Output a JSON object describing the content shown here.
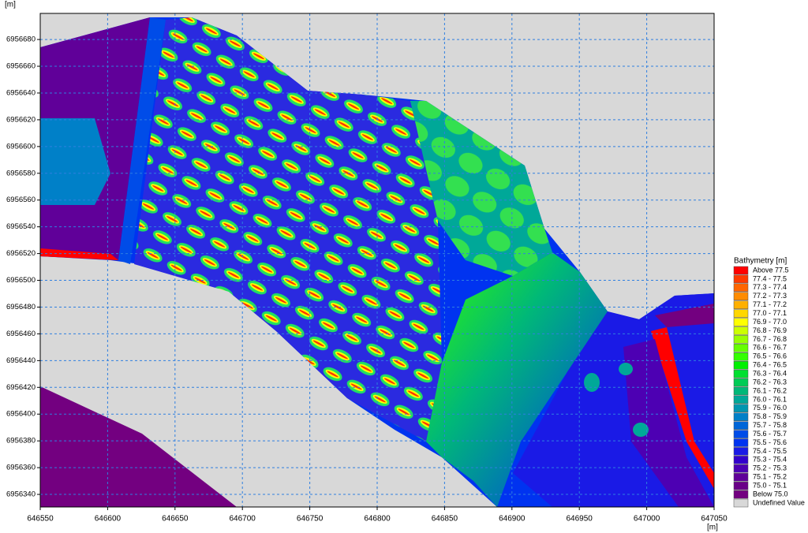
{
  "chart_data": {
    "type": "map",
    "xlabel": "[m]",
    "ylabel": "[m]",
    "xlim": [
      646550,
      647050
    ],
    "ylim": [
      6956330.6,
      6956699.5
    ],
    "xticks": [
      646550,
      646600,
      646650,
      646700,
      646750,
      646800,
      646850,
      646900,
      646950,
      647000,
      647050
    ],
    "yticks": [
      6956340,
      6956360,
      6956380,
      6956400,
      6956420,
      6956440,
      6956460,
      6956480,
      6956500,
      6956520,
      6956540,
      6956560,
      6956580,
      6956600,
      6956620,
      6956640,
      6956660,
      6956680
    ],
    "grid": true,
    "grid_color": "#2f7fe0",
    "legend_title": "Bathymetry [m]",
    "legend": [
      {
        "label": "Above 77.5",
        "color": "#ff0000"
      },
      {
        "label": "77.4 - 77.5",
        "color": "#ff3a00"
      },
      {
        "label": "77.3 - 77.4",
        "color": "#ff6600"
      },
      {
        "label": "77.2 - 77.3",
        "color": "#ff8c00"
      },
      {
        "label": "77.1 - 77.2",
        "color": "#ffb000"
      },
      {
        "label": "77.0 - 77.1",
        "color": "#ffd700"
      },
      {
        "label": "76.9 - 77.0",
        "color": "#ffff00"
      },
      {
        "label": "76.8 - 76.9",
        "color": "#ccff00"
      },
      {
        "label": "76.7 - 76.8",
        "color": "#99ff00"
      },
      {
        "label": "76.6 - 76.7",
        "color": "#66ff00"
      },
      {
        "label": "76.5 - 76.6",
        "color": "#33ff00"
      },
      {
        "label": "76.4 - 76.5",
        "color": "#00f000"
      },
      {
        "label": "76.3 - 76.4",
        "color": "#00e030"
      },
      {
        "label": "76.2 - 76.3",
        "color": "#00cc55"
      },
      {
        "label": "76.1 - 76.2",
        "color": "#00b878"
      },
      {
        "label": "76.0 - 76.1",
        "color": "#00a898"
      },
      {
        "label": "75.9 - 76.0",
        "color": "#0096b0"
      },
      {
        "label": "75.8 - 75.9",
        "color": "#0080c8"
      },
      {
        "label": "75.7 - 75.8",
        "color": "#0066d8"
      },
      {
        "label": "75.6 - 75.7",
        "color": "#004ce8"
      },
      {
        "label": "75.5 - 75.6",
        "color": "#0033f0"
      },
      {
        "label": "75.4 - 75.5",
        "color": "#1a1ae6"
      },
      {
        "label": "75.3 - 75.4",
        "color": "#3300cc"
      },
      {
        "label": "75.2 - 75.3",
        "color": "#4d00b3"
      },
      {
        "label": "75.1 - 75.2",
        "color": "#600099"
      },
      {
        "label": "75.0 - 75.1",
        "color": "#6a0088"
      },
      {
        "label": "Below 75.0",
        "color": "#730080"
      },
      {
        "label": "Undefined Value",
        "color": "#d8d8d8"
      }
    ]
  }
}
